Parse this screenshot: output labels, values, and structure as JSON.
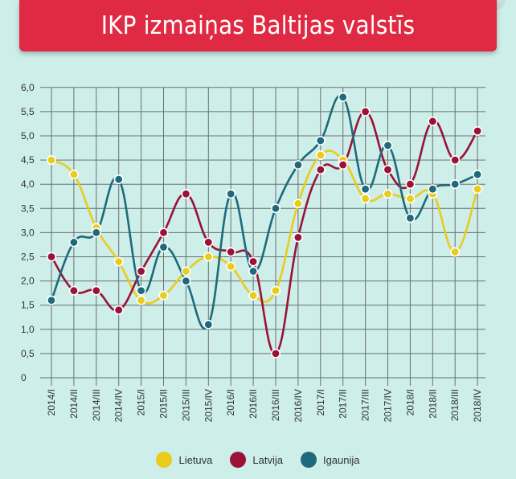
{
  "title": "IKP izmaiņas Baltijas valstīs",
  "colors": {
    "background": "#cdeee9",
    "banner": "#e02a43",
    "grid": "#6a6f70",
    "lietuva": "#e9cc1c",
    "latvija": "#9b1237",
    "igaunija": "#1e6a7c"
  },
  "chart_data": {
    "type": "line",
    "title": "IKP izmaiņas Baltijas valstīs",
    "xlabel": "",
    "ylabel": "",
    "ylim": [
      0,
      6
    ],
    "yticks": [
      "0",
      "0,5",
      "1,0",
      "1,5",
      "2,0",
      "2,5",
      "3,0",
      "3,5",
      "4,0",
      "4,5",
      "5,0",
      "5,5",
      "6,0"
    ],
    "grid": true,
    "legend": "bottom",
    "categories": [
      "2014/I",
      "2014/II",
      "2014/III",
      "2014/IV",
      "2015/I",
      "2015/II",
      "2015/III",
      "2015/IV",
      "2016/I",
      "2016/II",
      "2016/III",
      "2016/IV",
      "2017/I",
      "2017/II",
      "2017/III",
      "2017/IV",
      "2018/I",
      "2018/II",
      "2018/III",
      "2018/IV"
    ],
    "series": [
      {
        "name": "Lietuva",
        "color": "#e9cc1c",
        "values": [
          4.5,
          4.2,
          3.1,
          2.4,
          1.6,
          1.7,
          2.2,
          2.5,
          2.3,
          1.7,
          1.8,
          3.6,
          4.6,
          4.5,
          3.7,
          3.8,
          3.7,
          3.8,
          2.6,
          3.9
        ]
      },
      {
        "name": "Latvija",
        "color": "#9b1237",
        "values": [
          2.5,
          1.8,
          1.8,
          1.4,
          2.2,
          3.0,
          3.8,
          2.8,
          2.6,
          2.4,
          0.5,
          2.9,
          4.3,
          4.4,
          5.5,
          4.3,
          4.0,
          5.3,
          4.5,
          5.1
        ]
      },
      {
        "name": "Igaunija",
        "color": "#1e6a7c",
        "values": [
          1.6,
          2.8,
          3.0,
          4.1,
          1.8,
          2.7,
          2.0,
          1.1,
          3.8,
          2.2,
          3.5,
          4.4,
          4.9,
          5.8,
          3.9,
          4.8,
          3.3,
          3.9,
          4.0,
          4.2
        ]
      }
    ]
  }
}
